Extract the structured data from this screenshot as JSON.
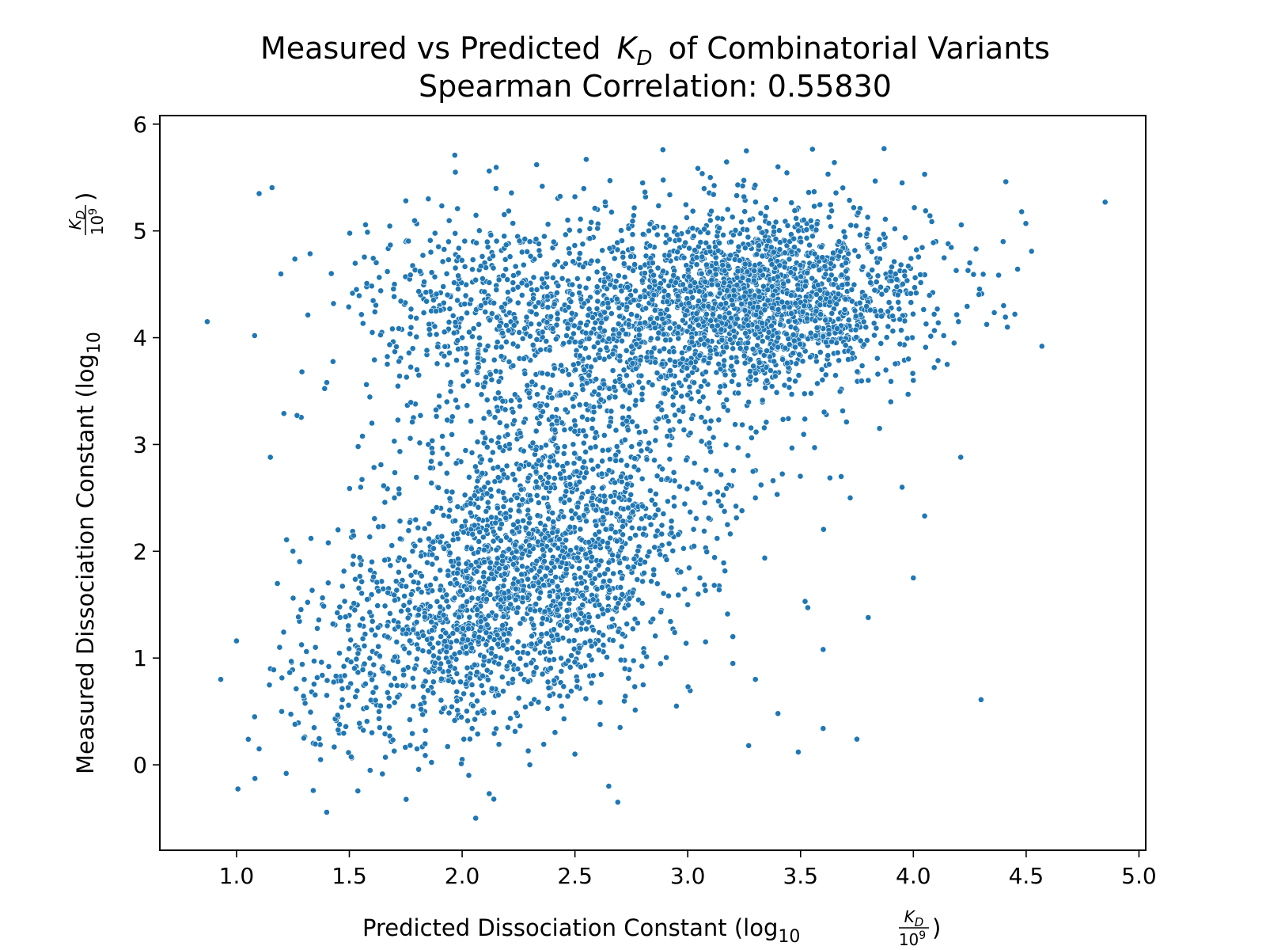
{
  "chart_data": {
    "type": "scatter",
    "title": "Measured vs Predicted",
    "title_var": "K",
    "title_var_sub": "D",
    "title_rest": "of Combinatorial Variants",
    "subtitle": "Spearman Correlation: 0.55830",
    "xlabel": {
      "text": "Predicted Dissociation Constant (log",
      "sub": "10",
      "num": "K",
      "num_sub": "D",
      "den": "10",
      "den_sup": "9",
      "close": ")"
    },
    "ylabel": {
      "text": "Measured Dissociation Constant (log",
      "sub": "10",
      "num": "K",
      "num_sub": "D",
      "den": "10",
      "den_sup": "9",
      "close": ")"
    },
    "xlim": [
      0.66,
      5.03
    ],
    "ylim": [
      -0.8,
      6.08
    ],
    "x_ticks": [
      1.0,
      1.5,
      2.0,
      2.5,
      3.0,
      3.5,
      4.0,
      4.5,
      5.0
    ],
    "x_tick_labels": [
      "1.0",
      "1.5",
      "2.0",
      "2.5",
      "3.0",
      "3.5",
      "4.0",
      "4.5",
      "5.0"
    ],
    "y_ticks": [
      0,
      1,
      2,
      3,
      4,
      5,
      6
    ],
    "y_tick_labels": [
      "0",
      "1",
      "2",
      "3",
      "4",
      "5",
      "6"
    ],
    "grid": false,
    "point_color": "#1f77b4",
    "point_edge_color": "#ffffff",
    "points": [
      [
        0.87,
        4.15
      ],
      [
        0.93,
        0.8
      ],
      [
        1.0,
        1.16
      ],
      [
        1.08,
        4.02
      ],
      [
        1.1,
        5.35
      ],
      [
        1.08,
        0.45
      ],
      [
        1.1,
        0.15
      ],
      [
        1.15,
        2.88
      ],
      [
        1.21,
        3.29
      ],
      [
        1.22,
        -0.08
      ],
      [
        1.29,
        3.68
      ],
      [
        1.34,
        -0.24
      ],
      [
        1.4,
        3.58
      ],
      [
        1.42,
        4.6
      ],
      [
        1.43,
        4.32
      ],
      [
        1.85,
        5.3
      ],
      [
        1.97,
        5.55
      ],
      [
        2.12,
        5.56
      ],
      [
        2.33,
        5.62
      ],
      [
        2.55,
        5.67
      ],
      [
        2.89,
        5.76
      ],
      [
        3.26,
        5.75
      ],
      [
        3.87,
        5.77
      ],
      [
        3.65,
        5.64
      ],
      [
        4.05,
        5.53
      ],
      [
        4.41,
        5.46
      ],
      [
        4.48,
        5.18
      ],
      [
        4.85,
        5.27
      ],
      [
        4.57,
        3.92
      ],
      [
        4.21,
        2.88
      ],
      [
        4.05,
        2.33
      ],
      [
        4.0,
        1.75
      ],
      [
        4.3,
        0.61
      ],
      [
        3.75,
        0.24
      ],
      [
        3.49,
        0.12
      ],
      [
        3.27,
        0.18
      ],
      [
        3.6,
        0.34
      ],
      [
        2.69,
        -0.35
      ],
      [
        2.06,
        -0.5
      ],
      [
        2.12,
        -0.27
      ],
      [
        2.65,
        -0.2
      ],
      [
        3.8,
        1.38
      ],
      [
        3.6,
        1.08
      ],
      [
        3.52,
        1.53
      ],
      [
        3.95,
        2.6
      ],
      [
        3.68,
        2.7
      ],
      [
        3.72,
        2.5
      ],
      [
        3.85,
        3.15
      ],
      [
        3.2,
        0.95
      ],
      [
        3.4,
        0.48
      ],
      [
        1.3,
        0.8
      ],
      [
        1.35,
        1.1
      ],
      [
        1.5,
        1.4
      ],
      [
        1.45,
        2.2
      ],
      [
        1.55,
        2.6
      ],
      [
        1.6,
        3.2
      ],
      [
        1.7,
        4.5
      ],
      [
        1.75,
        4.9
      ],
      [
        1.9,
        4.3
      ],
      [
        1.8,
        3.7
      ],
      [
        1.25,
        2.0
      ],
      [
        1.33,
        2.12
      ],
      [
        1.38,
        1.5
      ],
      [
        1.6,
        1.9
      ],
      [
        1.7,
        2.5
      ],
      [
        1.85,
        3.0
      ],
      [
        2.0,
        4.0
      ],
      [
        2.1,
        4.7
      ],
      [
        2.3,
        4.9
      ],
      [
        2.6,
        5.2
      ],
      [
        2.8,
        5.45
      ],
      [
        3.1,
        5.5
      ],
      [
        3.4,
        5.6
      ],
      [
        3.95,
        5.45
      ],
      [
        4.1,
        4.9
      ],
      [
        4.25,
        4.7
      ],
      [
        4.4,
        4.3
      ],
      [
        4.45,
        4.22
      ],
      [
        4.2,
        4.15
      ],
      [
        4.15,
        3.75
      ],
      [
        4.0,
        3.6
      ],
      [
        3.9,
        3.4
      ],
      [
        3.8,
        3.6
      ],
      [
        3.3,
        2.5
      ],
      [
        3.1,
        2.3
      ],
      [
        2.9,
        1.95
      ],
      [
        3.0,
        1.5
      ],
      [
        3.2,
        1.2
      ],
      [
        3.3,
        0.8
      ],
      [
        2.95,
        0.55
      ],
      [
        2.7,
        0.35
      ],
      [
        2.5,
        0.1
      ],
      [
        2.3,
        0.0
      ],
      [
        2.0,
        0.05
      ],
      [
        1.8,
        0.15
      ],
      [
        1.6,
        0.3
      ],
      [
        1.45,
        0.45
      ],
      [
        1.2,
        0.5
      ],
      [
        1.15,
        0.9
      ],
      [
        1.4,
        0.65
      ]
    ]
  }
}
